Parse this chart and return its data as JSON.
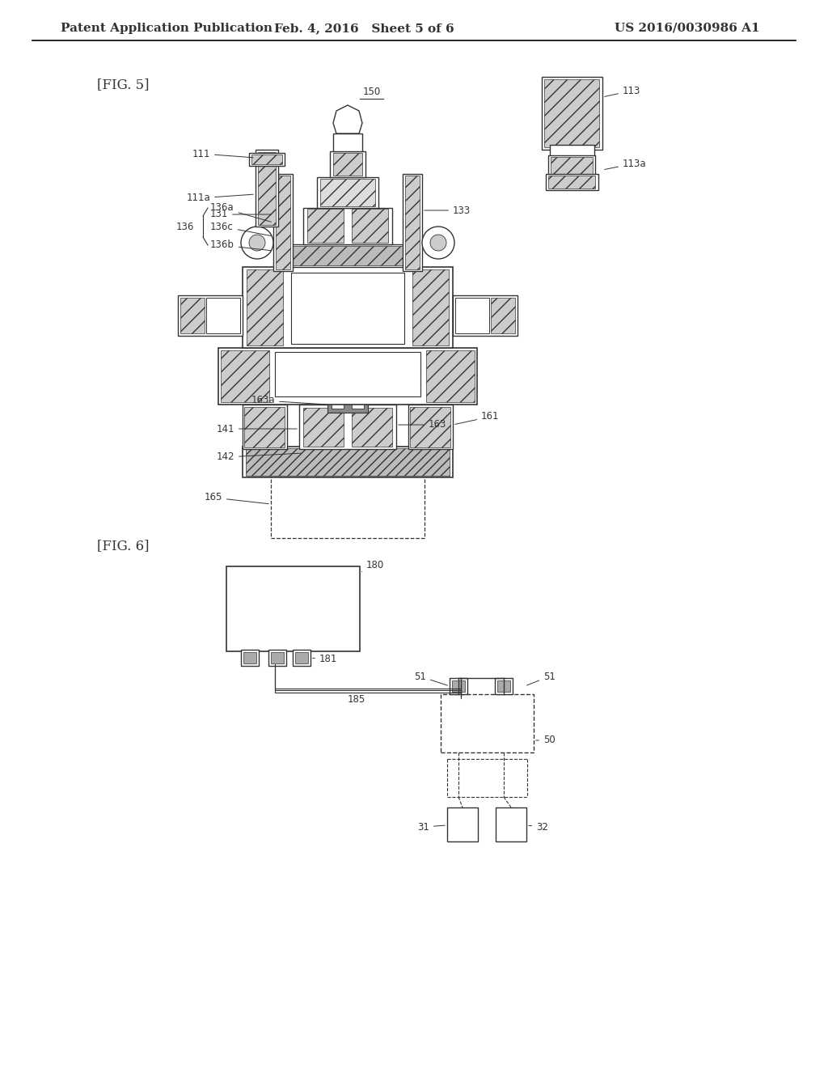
{
  "bg_color": "#ffffff",
  "header": {
    "left": "Patent Application Publication",
    "center": "Feb. 4, 2016   Sheet 5 of 6",
    "right": "US 2016/0030986 A1"
  },
  "fig5_label": "[FIG. 5]",
  "fig6_label": "[FIG. 6]",
  "line_color": "#333333",
  "text_color": "#333333",
  "label_fontsize": 8.5,
  "header_fontsize": 11
}
